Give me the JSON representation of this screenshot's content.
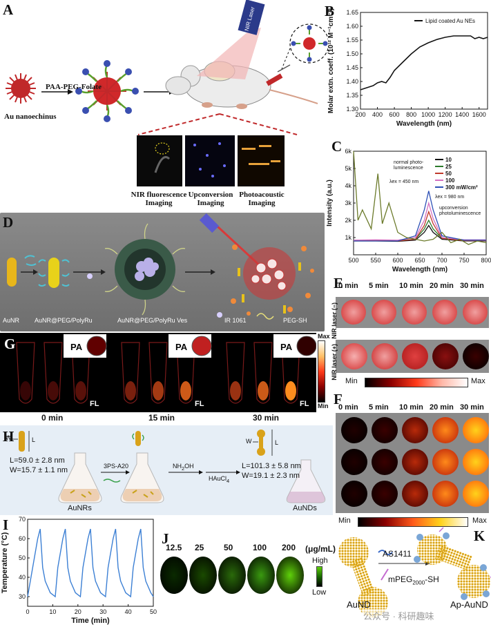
{
  "panels": {
    "A": {
      "label": "A",
      "nanoechinus": "Au nanoechinus",
      "reagent": "PAA-PEG-Folate",
      "laser": "NIR Laser",
      "imaging": [
        {
          "line1": "NIR fluorescence",
          "line2": "Imaging"
        },
        {
          "line1": "Upconversion",
          "line2": "Imaging"
        },
        {
          "line1": "Photoacoustic",
          "line2": "Imaging"
        }
      ]
    },
    "B": {
      "label": "B"
    },
    "C": {
      "label": "C",
      "normal_pl": "normal photo-\nluminescence",
      "lambda_ex1": "λex = 450 nm",
      "lambda_ex2": "λex = 980 nm",
      "upconv": "upconversion\nphotoluminescence"
    },
    "D": {
      "label": "D",
      "captions": [
        "AuNR",
        "AuNR@PEG/PolyRu",
        "AuNR@PEG/PolyRu Ves",
        "IR 1061",
        "PEG-SH"
      ]
    },
    "E": {
      "label": "E",
      "times": [
        "0 min",
        "5 min",
        "10 min",
        "20 min",
        "30 min"
      ],
      "row_minus": "NIR laser (−)",
      "row_plus": "NIR laser (+)",
      "min": "Min",
      "max": "Max"
    },
    "F": {
      "label": "F",
      "times": [
        "0 min",
        "5 min",
        "10 min",
        "20 min",
        "30 min"
      ],
      "min": "Min",
      "max": "Max"
    },
    "G": {
      "label": "G",
      "pa": "PA",
      "fl": "FL",
      "times": [
        "0 min",
        "15 min",
        "30 min"
      ],
      "max": "Max",
      "min": "Min"
    },
    "H": {
      "label": "H",
      "w": "W",
      "l": "L",
      "dims_left": [
        "L=59.0 ± 2.8 nm",
        "W=15.7 ± 1.1 nm"
      ],
      "dims_right": [
        "L=101.3 ± 5.8 nm",
        "W=19.1 ± 2.3 nm"
      ],
      "reagent1": "3PS-A20",
      "reagent2": "NH2OH",
      "reagent3": "HAuCl4",
      "left_name": "AuNRs",
      "right_name": "AuNDs"
    },
    "I": {
      "label": "I"
    },
    "J": {
      "label": "J",
      "concentrations": [
        "12.5",
        "25",
        "50",
        "100",
        "200"
      ],
      "unit": "(μg/mL)",
      "high": "High",
      "low": "Low"
    },
    "K": {
      "label": "K",
      "reagent1": "AS1411",
      "reagent2": "mPEG2000-SH",
      "left_name": "AuND",
      "right_name": "Ap-AuND",
      "watermark": "公众号 · 科研趣味"
    }
  },
  "chart_data": [
    {
      "id": "B",
      "type": "line",
      "xlabel": "Wavelength (nm)",
      "ylabel": "Molar extn. coeff. (10¹² M⁻¹cm⁻¹)",
      "xlim": [
        200,
        1700
      ],
      "ylim": [
        1.3,
        1.65
      ],
      "xticks": [
        200,
        400,
        600,
        800,
        1000,
        1200,
        1400,
        1600
      ],
      "yticks": [
        1.3,
        1.35,
        1.4,
        1.45,
        1.5,
        1.55,
        1.6,
        1.65
      ],
      "legend": "top-right",
      "series": [
        {
          "name": "Lipid coated Au NEs",
          "color": "#111111",
          "x": [
            200,
            250,
            300,
            350,
            400,
            450,
            500,
            550,
            600,
            700,
            800,
            900,
            1000,
            1100,
            1200,
            1300,
            1400,
            1500,
            1550,
            1600,
            1650,
            1700
          ],
          "y": [
            1.37,
            1.375,
            1.38,
            1.385,
            1.395,
            1.4,
            1.395,
            1.415,
            1.44,
            1.47,
            1.5,
            1.525,
            1.54,
            1.552,
            1.56,
            1.565,
            1.565,
            1.565,
            1.555,
            1.56,
            1.555,
            1.56
          ]
        }
      ]
    },
    {
      "id": "C",
      "type": "line",
      "xlabel": "Wavelength (nm)",
      "ylabel": "Intensity (a.u.)",
      "xlim": [
        500,
        800
      ],
      "ylim": [
        0,
        6000
      ],
      "xticks": [
        500,
        550,
        600,
        650,
        700,
        750,
        800
      ],
      "yticks": [
        1000,
        2000,
        3000,
        4000,
        5000,
        6000
      ],
      "ytick_labels": [
        "1k",
        "2k",
        "3k",
        "4k",
        "5k",
        "6k"
      ],
      "legend": "top-right",
      "series": [
        {
          "name": "10",
          "color": "#111111",
          "x": [
            500,
            550,
            600,
            640,
            660,
            670,
            680,
            700,
            750,
            800
          ],
          "y": [
            800,
            800,
            780,
            850,
            1300,
            1700,
            1300,
            900,
            800,
            800
          ]
        },
        {
          "name": "25",
          "color": "#2a7a2a",
          "x": [
            500,
            550,
            600,
            640,
            660,
            670,
            680,
            700,
            750,
            800
          ],
          "y": [
            850,
            850,
            830,
            900,
            1500,
            2000,
            1500,
            950,
            850,
            850
          ]
        },
        {
          "name": "50",
          "color": "#c0392b",
          "x": [
            500,
            550,
            600,
            640,
            660,
            670,
            680,
            700,
            750,
            800
          ],
          "y": [
            800,
            820,
            800,
            900,
            1700,
            2500,
            1800,
            950,
            820,
            820
          ]
        },
        {
          "name": "100",
          "color": "#d36fc0",
          "x": [
            500,
            550,
            600,
            640,
            660,
            670,
            680,
            700,
            750,
            800
          ],
          "y": [
            850,
            870,
            850,
            1000,
            2000,
            3000,
            2100,
            1000,
            870,
            870
          ]
        },
        {
          "name": "300 mW/cm²",
          "color": "#2c4fb5",
          "x": [
            500,
            550,
            600,
            640,
            660,
            670,
            680,
            700,
            750,
            800
          ],
          "y": [
            800,
            800,
            800,
            1100,
            2600,
            3700,
            2600,
            1100,
            850,
            850
          ]
        },
        {
          "name": "normal photoluminescence",
          "color": "#6b7a2a",
          "x": [
            500,
            510,
            520,
            540,
            555,
            565,
            580,
            600,
            620,
            640,
            660,
            680,
            700,
            720,
            740,
            760,
            780,
            800
          ],
          "y": [
            6000,
            2000,
            2600,
            1500,
            4700,
            1800,
            3000,
            1300,
            1000,
            900,
            800,
            900,
            1300,
            700,
            900,
            600,
            800,
            700
          ]
        }
      ]
    },
    {
      "id": "I",
      "type": "line",
      "xlabel": "Time (min)",
      "ylabel": "Temperature (°C)",
      "xlim": [
        0,
        50
      ],
      "ylim": [
        25,
        70
      ],
      "xticks": [
        0,
        10,
        20,
        30,
        40,
        50
      ],
      "yticks": [
        30,
        40,
        50,
        60,
        70
      ],
      "series": [
        {
          "name": "",
          "color": "#3b7fd4",
          "x": [
            0,
            2,
            4,
            5,
            6,
            7,
            9,
            11,
            12,
            14,
            15,
            16,
            17,
            19,
            21,
            22,
            24,
            25,
            26,
            27,
            29,
            31,
            32,
            34,
            35,
            36,
            37,
            39,
            41,
            42,
            44,
            45,
            46,
            47,
            49,
            50
          ],
          "y": [
            30,
            45,
            60,
            65,
            45,
            38,
            32,
            30,
            45,
            60,
            65,
            45,
            38,
            32,
            30,
            45,
            60,
            65,
            45,
            38,
            32,
            30,
            45,
            60,
            65,
            45,
            38,
            32,
            30,
            45,
            60,
            65,
            45,
            38,
            32,
            30
          ]
        }
      ]
    }
  ]
}
